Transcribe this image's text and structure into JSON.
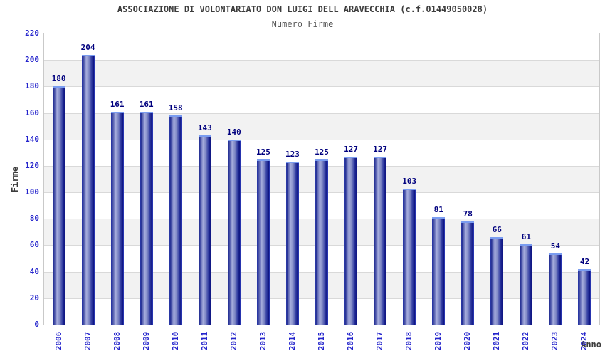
{
  "chart_data": {
    "type": "bar",
    "title": "ASSOCIAZIONE DI VOLONTARIATO DON LUIGI DELL ARAVECCHIA (c.f.01449050028)",
    "subtitle": "Numero Firme",
    "categories": [
      "2006",
      "2007",
      "2008",
      "2009",
      "2010",
      "2011",
      "2012",
      "2013",
      "2014",
      "2015",
      "2016",
      "2017",
      "2018",
      "2019",
      "2020",
      "2021",
      "2022",
      "2023",
      "2024"
    ],
    "values": [
      180,
      204,
      161,
      161,
      158,
      143,
      140,
      125,
      123,
      125,
      127,
      127,
      103,
      81,
      78,
      66,
      61,
      54,
      42
    ],
    "xlabel": "Anno",
    "ylabel": "Firme",
    "ylim": [
      0,
      220
    ],
    "yticks": [
      0,
      20,
      40,
      60,
      80,
      100,
      120,
      140,
      160,
      180,
      200,
      220
    ],
    "grid": true,
    "legend": "none",
    "x_labels_rotated_degrees": -90,
    "alternating_horizontal_bands": true
  },
  "style": {
    "tick_label_color": "#2424cc",
    "value_label_color": "#00007e",
    "title_color": "#3c3c3c",
    "subtitle_color": "#5a5a5a",
    "grid_line_color": "#d9d9d9",
    "band_gray": "#f2f2f2",
    "band_white": "#ffffff",
    "plot_border_color": "#c9c9c9",
    "bar_top_border_color": "#7a9cf0",
    "bar_gradient_stops": [
      [
        0.0,
        "#3b4cc0"
      ],
      [
        0.05,
        "#1b268e"
      ],
      [
        0.35,
        "#a6addd"
      ],
      [
        0.55,
        "#8089c6"
      ],
      [
        0.78,
        "#2a359e"
      ],
      [
        0.92,
        "#0d137e"
      ],
      [
        1.0,
        "#3344c8"
      ]
    ]
  }
}
